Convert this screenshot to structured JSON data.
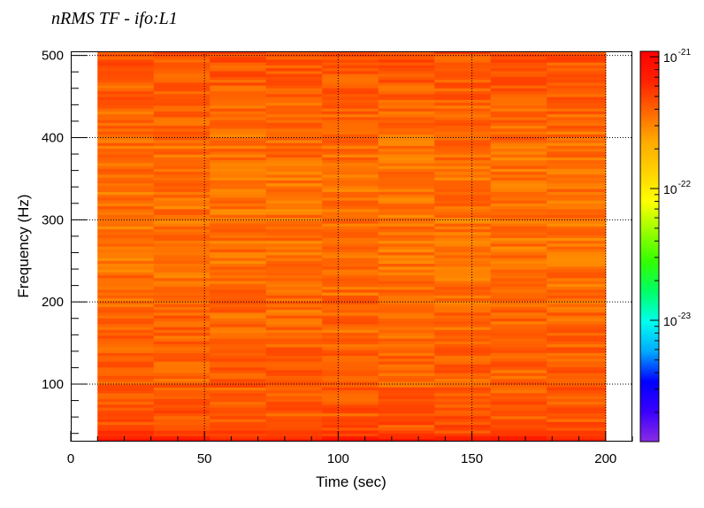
{
  "title": "nRMS TF - ifo:L1",
  "chart_data": {
    "type": "heatmap",
    "title": "nRMS TF - ifo:L1",
    "xlabel": "Time (sec)",
    "ylabel": "Frequency (Hz)",
    "xlim": [
      0,
      210
    ],
    "ylim": [
      30,
      505
    ],
    "x_ticks": [
      0,
      50,
      100,
      150,
      200
    ],
    "y_ticks": [
      100,
      200,
      300,
      400,
      500
    ],
    "grid": true,
    "data_x_range": [
      10,
      200
    ],
    "time_bins": [
      10,
      31,
      52,
      73,
      94,
      115,
      136,
      157,
      178,
      200
    ],
    "freq_profile": [
      {
        "f": 30,
        "v": 9e-22
      },
      {
        "f": 34,
        "v": 7.5e-22
      },
      {
        "f": 38,
        "v": 5.5e-22
      },
      {
        "f": 45,
        "v": 4.6e-22
      },
      {
        "f": 60,
        "v": 4.3e-22
      },
      {
        "f": 80,
        "v": 4.2e-22
      },
      {
        "f": 100,
        "v": 4.1e-22
      },
      {
        "f": 120,
        "v": 4e-22
      },
      {
        "f": 150,
        "v": 3.9e-22
      },
      {
        "f": 200,
        "v": 3.7e-22
      },
      {
        "f": 250,
        "v": 3.5e-22
      },
      {
        "f": 300,
        "v": 3.5e-22
      },
      {
        "f": 350,
        "v": 3.5e-22
      },
      {
        "f": 400,
        "v": 3.7e-22
      },
      {
        "f": 450,
        "v": 4e-22
      },
      {
        "f": 480,
        "v": 4.3e-22
      },
      {
        "f": 505,
        "v": 4.5e-22
      }
    ],
    "colorbar": {
      "scale": "log",
      "range": [
        1.2e-24,
        1.1e-21
      ],
      "ticks": [
        {
          "base": "10",
          "exp": "-21",
          "value": 1e-21
        },
        {
          "base": "10",
          "exp": "-22",
          "value": 1e-22
        },
        {
          "base": "10",
          "exp": "-23",
          "value": 1e-23
        }
      ],
      "palette": [
        "#8a2be2",
        "#3a00ff",
        "#0000ff",
        "#00aaff",
        "#00ffee",
        "#00ff66",
        "#33ff00",
        "#99ff00",
        "#ffff00",
        "#ffd200",
        "#ffaa00",
        "#ff6600",
        "#ff2200",
        "#ff0000"
      ]
    }
  }
}
